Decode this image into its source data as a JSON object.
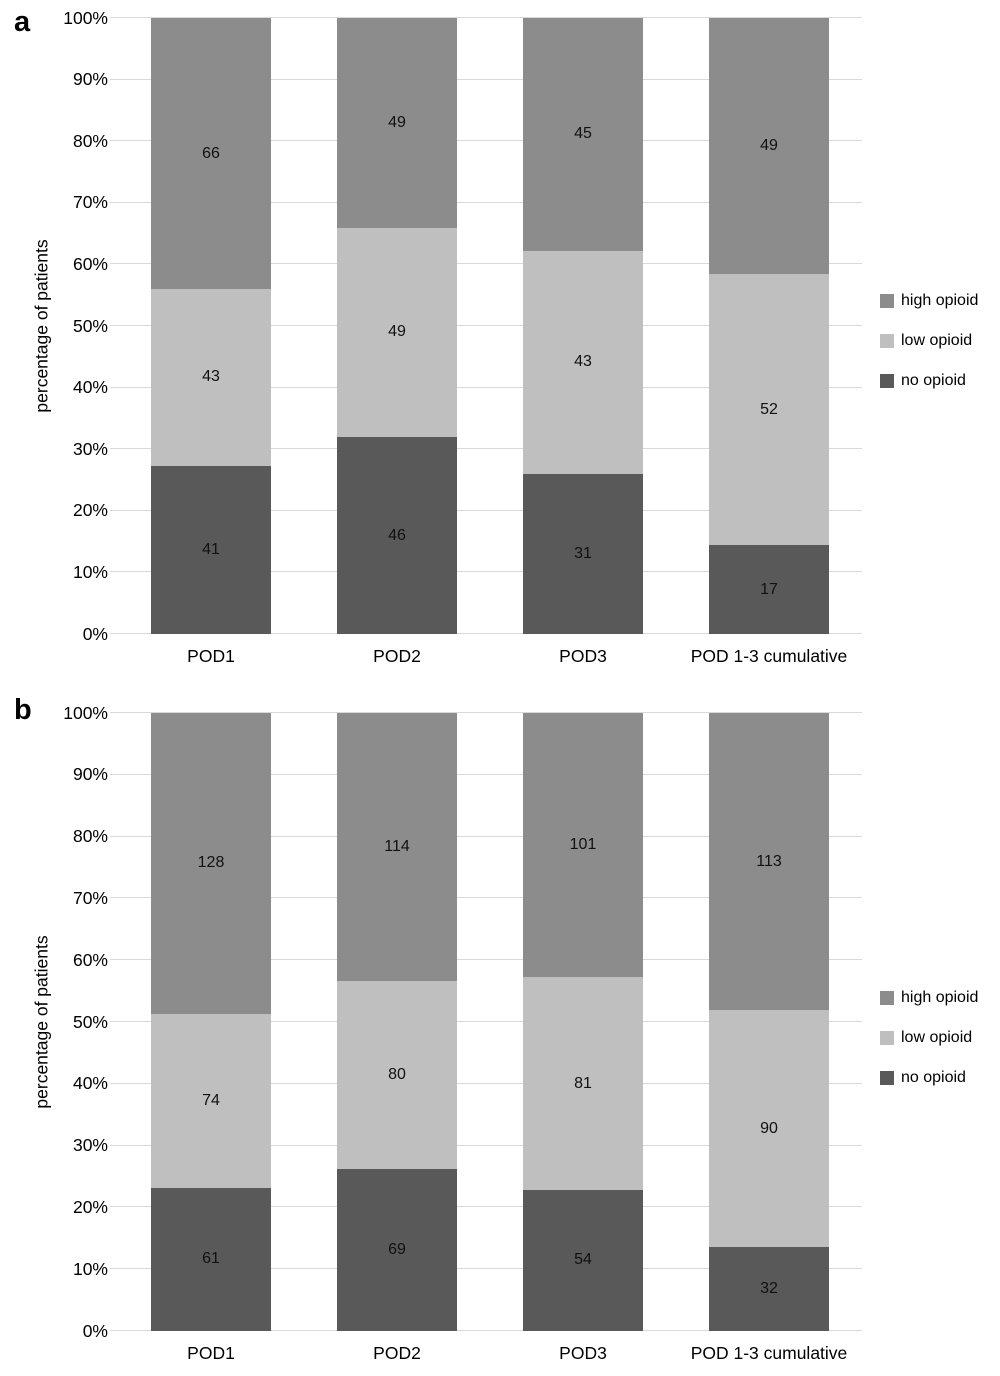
{
  "figure": {
    "background": "#ffffff",
    "grid_color": "#d9d9d9",
    "text_color": "#000000"
  },
  "chart_data": [
    {
      "panel": "a",
      "type": "bar",
      "stacked": true,
      "title": "",
      "ylabel": "percentage of patients",
      "xlabel": "",
      "ylim": [
        0,
        100
      ],
      "grid": true,
      "yticks": [
        "0%",
        "10%",
        "20%",
        "30%",
        "40%",
        "50%",
        "60%",
        "70%",
        "80%",
        "90%",
        "100%"
      ],
      "categories": [
        "POD1",
        "POD2",
        "POD3",
        "POD 1-3 cumulative"
      ],
      "series": [
        {
          "name": "no opioid",
          "color": "#595959",
          "values": [
            41,
            46,
            31,
            17
          ]
        },
        {
          "name": "low opioid",
          "color": "#bfbfbf",
          "values": [
            43,
            49,
            43,
            52
          ]
        },
        {
          "name": "high opioid",
          "color": "#8c8c8c",
          "values": [
            66,
            49,
            45,
            49
          ]
        }
      ],
      "value_note": "bar heights are percent of column total; labels show patient counts",
      "legend": [
        "high opioid",
        "low opioid",
        "no opioid"
      ],
      "legend_position": "right"
    },
    {
      "panel": "b",
      "type": "bar",
      "stacked": true,
      "title": "",
      "ylabel": "percentage of patients",
      "xlabel": "",
      "ylim": [
        0,
        100
      ],
      "grid": true,
      "yticks": [
        "0%",
        "10%",
        "20%",
        "30%",
        "40%",
        "50%",
        "60%",
        "70%",
        "80%",
        "90%",
        "100%"
      ],
      "categories": [
        "POD1",
        "POD2",
        "POD3",
        "POD 1-3 cumulative"
      ],
      "series": [
        {
          "name": "no opioid",
          "color": "#595959",
          "values": [
            61,
            69,
            54,
            32
          ]
        },
        {
          "name": "low opioid",
          "color": "#bfbfbf",
          "values": [
            74,
            80,
            81,
            90
          ]
        },
        {
          "name": "high opioid",
          "color": "#8c8c8c",
          "values": [
            128,
            114,
            101,
            113
          ]
        }
      ],
      "value_note": "bar heights are percent of column total; labels show patient counts",
      "legend": [
        "high opioid",
        "low opioid",
        "no opioid"
      ],
      "legend_position": "right"
    }
  ]
}
